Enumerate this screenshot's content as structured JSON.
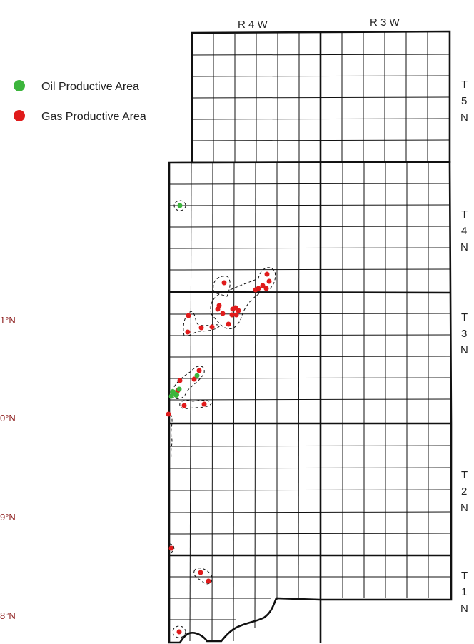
{
  "legend": {
    "items": [
      {
        "label": "Oil Productive Area",
        "color": "#3cb53c"
      },
      {
        "label": "Gas Productive Area",
        "color": "#e01b1b"
      }
    ]
  },
  "ranges": [
    {
      "label": "R 4 W"
    },
    {
      "label": "R 3 W"
    }
  ],
  "townships": [
    {
      "lines": [
        "T",
        "5",
        "N"
      ]
    },
    {
      "lines": [
        "T",
        "4",
        "N"
      ]
    },
    {
      "lines": [
        "T",
        "3",
        "N"
      ]
    },
    {
      "lines": [
        "T",
        "2",
        "N"
      ]
    },
    {
      "lines": [
        "T",
        "1",
        "N"
      ]
    }
  ],
  "latitude_labels": [
    "1°N",
    "0°N",
    "9°N",
    "8°N"
  ],
  "colors": {
    "oil": "#3cb53c",
    "gas": "#e01b1b",
    "lines": "#111111",
    "lat_label": "#8b1a1a"
  }
}
